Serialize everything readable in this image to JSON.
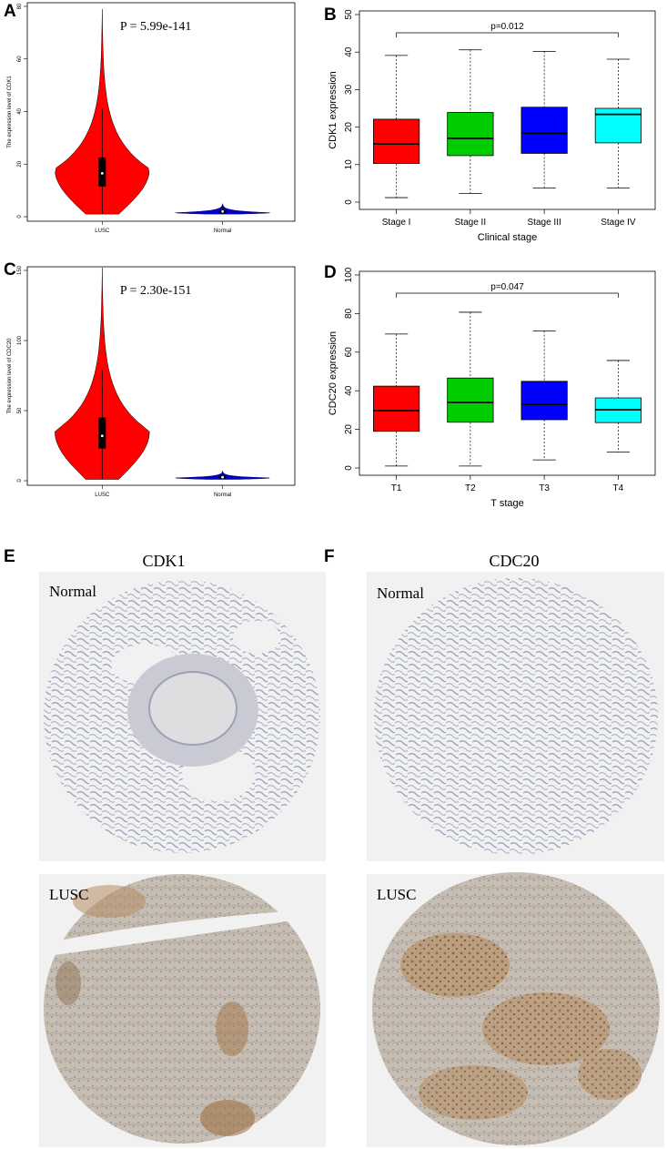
{
  "panels": {
    "A": "A",
    "B": "B",
    "C": "C",
    "D": "D",
    "E": "E",
    "F": "F"
  },
  "colors": {
    "violin_tumor": "#ff0000",
    "violin_normal": "#0000cc",
    "stage1": "#ff0000",
    "stage2": "#00cc00",
    "stage3": "#0000ff",
    "stage4": "#00ffff",
    "tissue_bg": "#f1f1f1",
    "tissue_normal": "#9aa2bd",
    "tissue_lusc": "#b3a89c",
    "stain_brown": "#8a5a2b"
  },
  "chart_data": [
    {
      "id": "A",
      "type": "violin",
      "categories": [
        "LUSC",
        "Normal"
      ],
      "ylabel": "The expression level of CDK1",
      "ylim": [
        0,
        80
      ],
      "yticks": [
        0,
        20,
        40,
        60,
        80
      ],
      "annotation": "P = 5.99e-141",
      "series": [
        {
          "category": "LUSC",
          "min": 1,
          "q1": 11.5,
          "median": 16.5,
          "q3": 22.5,
          "whisker_high": 41,
          "max": 79,
          "mode": 18
        },
        {
          "category": "Normal",
          "min": 1,
          "q1": 1.2,
          "median": 2,
          "q3": 2.5,
          "whisker_high": 4.5,
          "max": 5,
          "mode": 1.5
        }
      ]
    },
    {
      "id": "B",
      "type": "box",
      "categories": [
        "Stage I",
        "Stage II",
        "Stage III",
        "Stage IV"
      ],
      "xlabel": "Clinical stage",
      "ylabel": "CDK1 expression",
      "ylim": [
        0,
        50
      ],
      "yticks": [
        0,
        10,
        20,
        30,
        40,
        50
      ],
      "annotation": "p=0.012",
      "boxes": [
        {
          "min": 1.2,
          "q1": 10.3,
          "median": 15.5,
          "q3": 22.1,
          "max": 39.1
        },
        {
          "min": 2.3,
          "q1": 12.4,
          "median": 17.0,
          "q3": 23.9,
          "max": 40.6
        },
        {
          "min": 3.8,
          "q1": 13.0,
          "median": 18.4,
          "q3": 25.3,
          "max": 40.2
        },
        {
          "min": 3.8,
          "q1": 15.8,
          "median": 23.4,
          "q3": 25.0,
          "max": 38.1
        }
      ]
    },
    {
      "id": "C",
      "type": "violin",
      "categories": [
        "LUSC",
        "Normal"
      ],
      "ylabel": "The expression level of CDC20",
      "ylim": [
        0,
        150
      ],
      "yticks": [
        0,
        50,
        100,
        150
      ],
      "annotation": "P = 2.30e-151",
      "series": [
        {
          "category": "LUSC",
          "min": 1,
          "q1": 23,
          "median": 32,
          "q3": 45,
          "whisker_high": 79,
          "max": 152,
          "mode": 35
        },
        {
          "category": "Normal",
          "min": 1,
          "q1": 1.5,
          "median": 2.5,
          "q3": 3.5,
          "whisker_high": 6,
          "max": 7,
          "mode": 2
        }
      ]
    },
    {
      "id": "D",
      "type": "box",
      "categories": [
        "T1",
        "T2",
        "T3",
        "T4"
      ],
      "xlabel": "T stage",
      "ylabel": "CDC20 expression",
      "ylim": [
        0,
        100
      ],
      "yticks": [
        0,
        20,
        40,
        60,
        80,
        100
      ],
      "annotation": "p=0.047",
      "boxes": [
        {
          "min": 1.0,
          "q1": 19.0,
          "median": 29.7,
          "q3": 42.4,
          "max": 69.4
        },
        {
          "min": 1.0,
          "q1": 23.7,
          "median": 34.0,
          "q3": 46.6,
          "max": 80.7
        },
        {
          "min": 4.2,
          "q1": 25.0,
          "median": 33.0,
          "q3": 44.9,
          "max": 71.0
        },
        {
          "min": 8.2,
          "q1": 23.5,
          "median": 30.2,
          "q3": 36.3,
          "max": 55.7
        }
      ]
    }
  ],
  "images": {
    "E_title": "CDK1",
    "F_title": "CDC20",
    "normal_label": "Normal",
    "lusc_label": "LUSC"
  }
}
